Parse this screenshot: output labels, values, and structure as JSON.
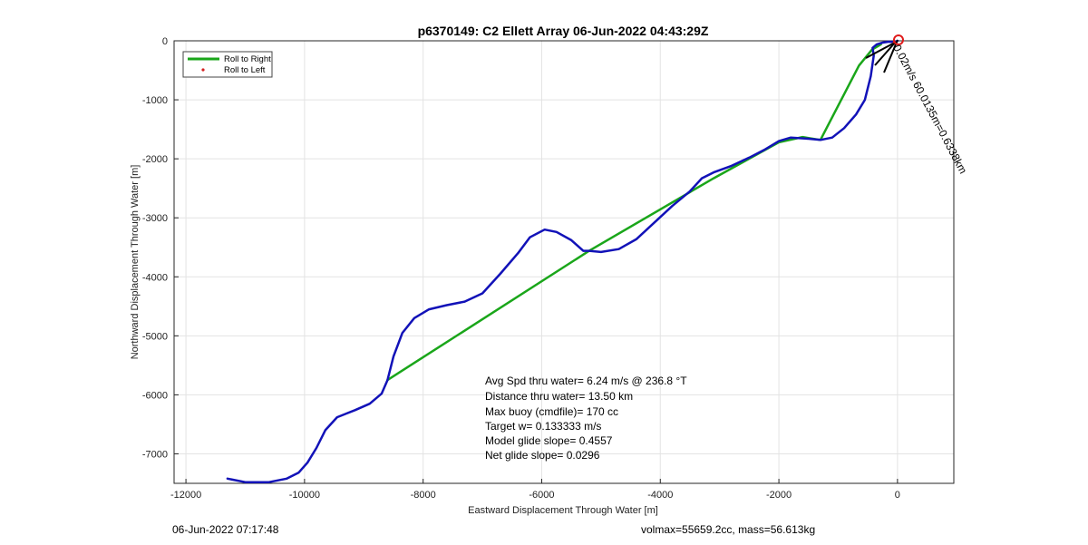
{
  "chart_data": {
    "type": "line",
    "title": "p6370149: C2 Ellett Array 06-Jun-2022 04:43:29Z",
    "xlabel": "Eastward Displacement Through Water [m]",
    "ylabel": "Northward Displacement Through Water [m]",
    "xlim": [
      -12200,
      950
    ],
    "ylim": [
      -7500,
      0
    ],
    "xticks": [
      -12000,
      -10000,
      -8000,
      -6000,
      -4000,
      -2000,
      0
    ],
    "yticks": [
      0,
      -1000,
      -2000,
      -3000,
      -4000,
      -5000,
      -6000,
      -7000
    ],
    "grid": true,
    "legend": {
      "placement": "top-left",
      "entries": [
        "Roll to Right",
        "Roll to Left"
      ]
    },
    "series": [
      {
        "name": "Roll to Right",
        "color": "#1aa61a",
        "x": [
          -8600,
          -5200,
          -5200,
          -3100,
          -3100,
          -2000,
          -2000,
          -1600,
          -1600,
          -1300,
          -1300,
          -650,
          -650,
          -430,
          -430,
          -280
        ],
        "y": [
          -5750,
          -3560,
          -3560,
          -2330,
          -2330,
          -1720,
          -1720,
          -1630,
          -1630,
          -1680,
          -1680,
          -420,
          -420,
          -150,
          -150,
          -60
        ]
      },
      {
        "name": "Roll to Left",
        "color": "#d42020",
        "x": [
          -50
        ],
        "y": [
          -30
        ]
      },
      {
        "name": "",
        "color": "#1212b8",
        "x": [
          -11300,
          -11000,
          -10600,
          -10300,
          -10100,
          -9950,
          -9800,
          -9650,
          -9450,
          -9150,
          -8900,
          -8700,
          -8600,
          -8500,
          -8350,
          -8150,
          -7900,
          -7600,
          -7300,
          -7000,
          -6700,
          -6400,
          -6200,
          -5950,
          -5750,
          -5500,
          -5300,
          -5200,
          -5000,
          -4700,
          -4400,
          -4100,
          -3800,
          -3500,
          -3300,
          -3100,
          -2800,
          -2500,
          -2250,
          -2000,
          -1800,
          -1500,
          -1300,
          -1100,
          -900,
          -700,
          -550,
          -450,
          -400,
          -420,
          -350,
          -250,
          -150,
          -50,
          0
        ],
        "y": [
          -7420,
          -7480,
          -7480,
          -7420,
          -7320,
          -7150,
          -6900,
          -6600,
          -6380,
          -6260,
          -6150,
          -5980,
          -5750,
          -5350,
          -4950,
          -4700,
          -4550,
          -4480,
          -4420,
          -4280,
          -3950,
          -3600,
          -3330,
          -3200,
          -3240,
          -3380,
          -3560,
          -3560,
          -3580,
          -3530,
          -3360,
          -3080,
          -2800,
          -2550,
          -2330,
          -2230,
          -2120,
          -1980,
          -1850,
          -1700,
          -1640,
          -1660,
          -1680,
          -1640,
          -1480,
          -1250,
          -1000,
          -600,
          -250,
          -120,
          -60,
          -30,
          -15,
          -20,
          0
        ]
      }
    ],
    "annotations": [
      "Avg Spd thru water=  6.24 m/s @ 236.8 °T",
      "Distance thru water= 13.50 km",
      "Max buoy (cmdfile)= 170 cc",
      "Target w= 0.133333 m/s",
      "Model glide slope= 0.4557",
      "Net glide slope= 0.0296"
    ],
    "rotated_label": "0.02m/s 60.0135m=0.6338km",
    "footer_left": "06-Jun-2022 07:17:48",
    "footer_right": "volmax=55659.2cc, mass=56.613kg"
  }
}
